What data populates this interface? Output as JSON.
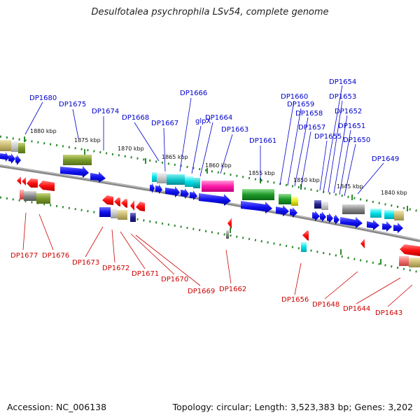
{
  "title": "Desulfotalea psychrophila LSv54, complete genome",
  "footer": {
    "accession": "Accession: NC_006138",
    "stats": "Topology: circular; Length: 3,523,383 bp; Genes: 3,202"
  },
  "colors": {
    "forward_label": "#0000cc",
    "reverse_label": "#cc0000",
    "track_dots": "#2e8b2e",
    "backbone": "#7a7a7a"
  },
  "kbp_ticks": [
    "1880 kbp",
    "1875 kbp",
    "1870 kbp",
    "1865 kbp",
    "1860 kbp",
    "1855 kbp",
    "1850 kbp",
    "1845 kbp",
    "1840 kbp"
  ],
  "forward_genes": [
    "DP1680",
    "DP1675",
    "DP1674",
    "DP1668",
    "DP1667",
    "DP1666",
    "glpX",
    "DP1664",
    "DP1663",
    "DP1661",
    "DP1660",
    "DP1659",
    "DP1658",
    "DP1657",
    "DP1655",
    "DP1654",
    "DP1653",
    "DP1652",
    "DP1651",
    "DP1650",
    "DP1649"
  ],
  "reverse_genes": [
    "DP1677",
    "DP1676",
    "DP1673",
    "DP1672",
    "DP1671",
    "DP1670",
    "DP1669",
    "DP1662",
    "DP1656",
    "DP1648",
    "DP1644",
    "DP1643"
  ]
}
